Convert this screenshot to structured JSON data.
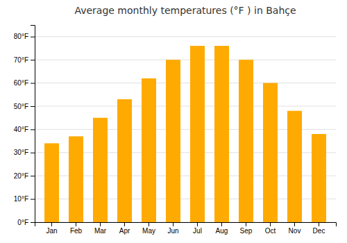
{
  "chart_data": {
    "type": "bar",
    "title": "Average monthly temperatures (°F ) in Bahçe",
    "categories": [
      "Jan",
      "Feb",
      "Mar",
      "Apr",
      "May",
      "Jun",
      "Jul",
      "Aug",
      "Sep",
      "Oct",
      "Nov",
      "Dec"
    ],
    "values": [
      34,
      37,
      45,
      53,
      62,
      70,
      76,
      76,
      70,
      60,
      48,
      38
    ],
    "color": "#FFAA00",
    "ylim": [
      0,
      85
    ],
    "yticks": [
      {
        "value": 0,
        "label": "0°F"
      },
      {
        "value": 10,
        "label": "10°F"
      },
      {
        "value": 20,
        "label": "20°F"
      },
      {
        "value": 30,
        "label": "30°F"
      },
      {
        "value": 40,
        "label": "40°F"
      },
      {
        "value": 50,
        "label": "50°F"
      },
      {
        "value": 60,
        "label": "60°F"
      },
      {
        "value": 70,
        "label": "70°F"
      },
      {
        "value": 80,
        "label": "80°F"
      }
    ],
    "grid": true
  }
}
